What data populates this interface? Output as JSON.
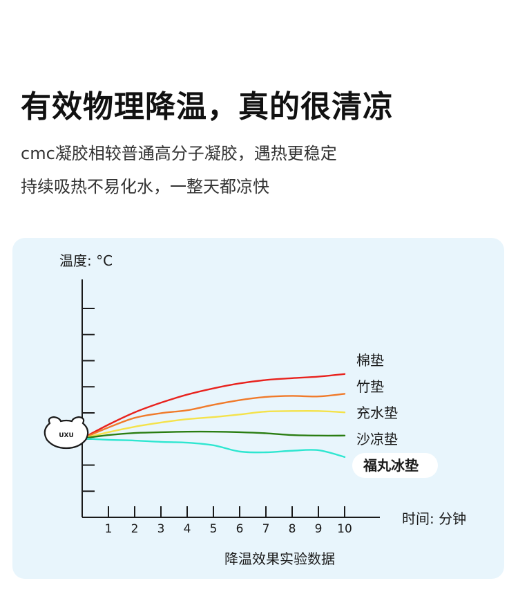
{
  "header": {
    "title": "有效物理降温，真的很清凉",
    "subtitle_line1": "cmc凝胶相较普通高分子凝胶，遇热更稳定",
    "subtitle_line2": "持续吸热不易化水，一整天都凉快"
  },
  "logo": {
    "text": "UXU"
  },
  "chart_data": {
    "type": "line",
    "title": "",
    "caption": "降温效果实验数据",
    "ylabel": "温度: °C",
    "xlabel": "时间: 分钟",
    "x": [
      0,
      1,
      2,
      3,
      4,
      5,
      6,
      7,
      8,
      9,
      10
    ],
    "y_ticks_count": 8,
    "note": "y values estimated in y-tick steps relative to the start temperature (0); no numeric y tick labels are printed",
    "series": [
      {
        "name": "棉垫",
        "color": "#e8221d",
        "bold": false,
        "label_bg": false,
        "values": [
          0,
          0.53,
          1.0,
          1.37,
          1.68,
          1.92,
          2.11,
          2.24,
          2.31,
          2.37,
          2.47
        ]
      },
      {
        "name": "竹垫",
        "color": "#f07a2a",
        "bold": false,
        "label_bg": false,
        "values": [
          0,
          0.42,
          0.79,
          0.97,
          1.08,
          1.29,
          1.47,
          1.59,
          1.63,
          1.61,
          1.71
        ]
      },
      {
        "name": "充水垫",
        "color": "#f4e24a",
        "bold": false,
        "label_bg": false,
        "values": [
          0,
          0.24,
          0.45,
          0.61,
          0.74,
          0.82,
          0.92,
          1.03,
          1.05,
          1.05,
          1.0
        ]
      },
      {
        "name": "沙凉垫",
        "color": "#2a7d12",
        "bold": false,
        "label_bg": false,
        "values": [
          0,
          0.13,
          0.21,
          0.24,
          0.26,
          0.26,
          0.24,
          0.2,
          0.13,
          0.11,
          0.11
        ]
      },
      {
        "name": "福丸冰垫",
        "color": "#2ee6d0",
        "bold": true,
        "label_bg": true,
        "values": [
          0,
          -0.05,
          -0.08,
          -0.13,
          -0.16,
          -0.26,
          -0.5,
          -0.53,
          -0.47,
          -0.45,
          -0.71
        ]
      }
    ]
  }
}
